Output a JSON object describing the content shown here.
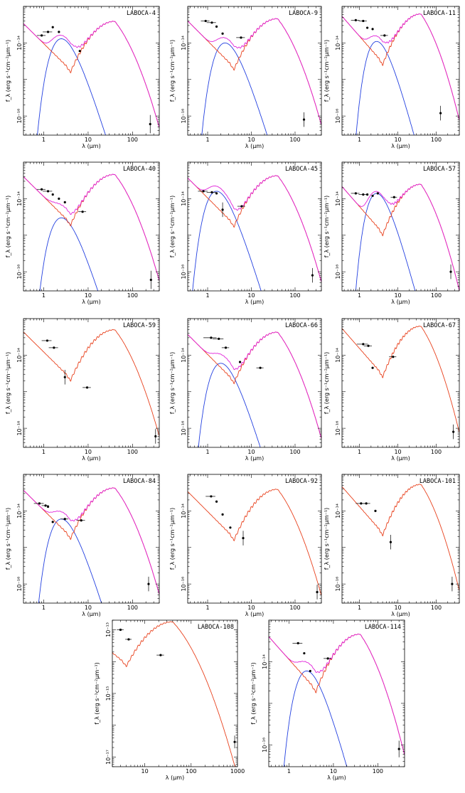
{
  "figure": {
    "colors": {
      "stellar": "#2340e0",
      "starburst": "#e8401c",
      "total": "#e020d8",
      "points": "#000000"
    }
  },
  "chart_data": [
    {
      "type": "line",
      "title": "LABOCA-4",
      "xlabel": "λ (μm)",
      "ylabel": "f_λ (erg s⁻¹cm⁻²μm⁻¹)",
      "xlim": [
        0.35,
        400
      ],
      "xticks": [
        1,
        10,
        100
      ],
      "ylim": [
        3e-17,
        1e-13
      ],
      "yticks_labeled": [
        "10⁻¹⁴",
        "10⁻¹⁶"
      ],
      "components": [
        "stellar",
        "starburst",
        "total"
      ],
      "stellar_peak_um": 2.5,
      "stellar_peak_f": 1.3e-14,
      "sb_scale": 2.2e-14,
      "sb_offset": 0,
      "points": [
        {
          "x": 0.9,
          "y": 1.6e-14,
          "xerr": 0.2
        },
        {
          "x": 1.25,
          "y": 2e-14,
          "xerr": 0.3
        },
        {
          "x": 1.6,
          "y": 2.7e-14
        },
        {
          "x": 2.2,
          "y": 2e-14
        },
        {
          "x": 6.5,
          "y": 6e-15
        },
        {
          "x": 250,
          "y": 6e-17,
          "yerr": 0.25
        }
      ]
    },
    {
      "type": "line",
      "title": "LABOCA-9",
      "xlabel": "λ (μm)",
      "ylabel": "f_λ (erg s⁻¹cm⁻²μm⁻¹)",
      "xlim": [
        0.35,
        400
      ],
      "xticks": [
        1,
        10,
        100
      ],
      "ylim": [
        3e-17,
        1e-13
      ],
      "yticks_labeled": [
        "10⁻¹⁴",
        "10⁻¹⁶"
      ],
      "components": [
        "stellar",
        "starburst",
        "total"
      ],
      "stellar_peak_um": 2.5,
      "stellar_peak_f": 1e-14,
      "sb_scale": 2.6e-14,
      "sb_offset": 0,
      "points": [
        {
          "x": 0.9,
          "y": 4e-14,
          "xerr": 0.2
        },
        {
          "x": 1.25,
          "y": 3.6e-14,
          "xerr": 0.3
        },
        {
          "x": 1.6,
          "y": 2.8e-14
        },
        {
          "x": 2.2,
          "y": 1.8e-14
        },
        {
          "x": 5.8,
          "y": 1.4e-14,
          "xerr": 1.3
        },
        {
          "x": 160,
          "y": 8e-17,
          "yerr": 0.2
        }
      ]
    },
    {
      "type": "line",
      "title": "LABOCA-11",
      "xlabel": "λ (μm)",
      "ylabel": "f_λ (erg s⁻¹cm⁻²μm⁻¹)",
      "xlim": [
        0.35,
        400
      ],
      "xticks": [
        1,
        10,
        100
      ],
      "ylim": [
        3e-17,
        1e-13
      ],
      "yticks_labeled": [
        "10⁻¹⁴",
        "10⁻¹⁶"
      ],
      "components": [
        "stellar",
        "starburst",
        "total"
      ],
      "stellar_peak_um": 2.8,
      "stellar_peak_f": 1.1e-14,
      "sb_scale": 3.5e-14,
      "sb_offset": 0,
      "points": [
        {
          "x": 0.8,
          "y": 4.2e-14,
          "xerr": 0.2
        },
        {
          "x": 1.25,
          "y": 4e-14,
          "xerr": 0.3
        },
        {
          "x": 1.6,
          "y": 2.6e-14
        },
        {
          "x": 2.2,
          "y": 2.4e-14
        },
        {
          "x": 4.5,
          "y": 1.6e-14,
          "xerr": 1.0
        },
        {
          "x": 130,
          "y": 1.2e-16,
          "yerr": 0.2
        }
      ]
    },
    {
      "type": "line",
      "title": "LABOCA-40",
      "xlabel": "λ (μm)",
      "ylabel": "f_λ (erg s⁻¹cm⁻²μm⁻¹)",
      "xlim": [
        0.35,
        400
      ],
      "xticks": [
        1,
        10,
        100
      ],
      "ylim": [
        3e-17,
        1e-13
      ],
      "yticks_labeled": [
        "10⁻¹⁴",
        "10⁻¹⁶"
      ],
      "components": [
        "stellar",
        "starburst",
        "total"
      ],
      "stellar_peak_um": 2.5,
      "stellar_peak_f": 3e-15,
      "sb_scale": 2.6e-14,
      "sb_offset": 0,
      "points": [
        {
          "x": 0.9,
          "y": 1.8e-14,
          "xerr": 0.2
        },
        {
          "x": 1.25,
          "y": 1.6e-14,
          "xerr": 0.3
        },
        {
          "x": 1.6,
          "y": 1.3e-14
        },
        {
          "x": 2.2,
          "y": 1e-14
        },
        {
          "x": 3.0,
          "y": 8e-15
        },
        {
          "x": 7.5,
          "y": 4.4e-15,
          "xerr": 1.5
        },
        {
          "x": 260,
          "y": 6e-17,
          "yerr": 0.25
        }
      ]
    },
    {
      "type": "line",
      "title": "LABOCA-45",
      "xlabel": "λ (μm)",
      "ylabel": "f_λ (erg s⁻¹cm⁻²μm⁻¹)",
      "xlim": [
        0.35,
        400
      ],
      "xticks": [
        1,
        10,
        100
      ],
      "ylim": [
        3e-17,
        1e-13
      ],
      "yticks_labeled": [
        "10⁻¹⁴",
        "10⁻¹⁶"
      ],
      "components": [
        "stellar",
        "starburst",
        "total"
      ],
      "stellar_peak_um": 1.6,
      "stellar_peak_f": 1.6e-14,
      "sb_scale": 2.4e-14,
      "sb_offset": 0,
      "points": [
        {
          "x": 0.8,
          "y": 1.6e-14,
          "xerr": 0.2
        },
        {
          "x": 1.25,
          "y": 1.5e-14,
          "xerr": 0.3
        },
        {
          "x": 1.6,
          "y": 1.4e-14
        },
        {
          "x": 2.2,
          "y": 5e-15,
          "yerr": 0.2
        },
        {
          "x": 6.0,
          "y": 6.2e-15,
          "xerr": 1.2
        },
        {
          "x": 250,
          "y": 8e-17,
          "yerr": 0.2
        }
      ]
    },
    {
      "type": "line",
      "title": "LABOCA-57",
      "xlabel": "λ (μm)",
      "ylabel": "f_λ (erg s⁻¹cm⁻²μm⁻¹)",
      "xlim": [
        0.35,
        400
      ],
      "xticks": [
        1,
        10,
        100
      ],
      "ylim": [
        3e-17,
        1e-13
      ],
      "yticks_labeled": [
        "10⁻¹⁴",
        "10⁻¹⁶"
      ],
      "components": [
        "stellar",
        "starburst",
        "total"
      ],
      "stellar_peak_um": 2.8,
      "stellar_peak_f": 1.4e-14,
      "sb_scale": 1.4e-14,
      "sb_offset": 0,
      "points": [
        {
          "x": 0.8,
          "y": 1.4e-14,
          "xerr": 0.2
        },
        {
          "x": 1.25,
          "y": 1.3e-14,
          "xerr": 0.3
        },
        {
          "x": 1.6,
          "y": 1.3e-14
        },
        {
          "x": 2.2,
          "y": 1.2e-14
        },
        {
          "x": 3.0,
          "y": 1.4e-14
        },
        {
          "x": 8.0,
          "y": 1.1e-14,
          "xerr": 1.5
        },
        {
          "x": 240,
          "y": 1e-16,
          "yerr": 0.2
        }
      ]
    },
    {
      "type": "line",
      "title": "LABOCA-59",
      "xlabel": "λ (μm)",
      "ylabel": "f_λ (erg s⁻¹cm⁻²μm⁻¹)",
      "xlim": [
        0.35,
        400
      ],
      "xticks": [
        1,
        10,
        100
      ],
      "ylim": [
        3e-17,
        1e-13
      ],
      "yticks_labeled": [
        "10⁻¹⁴",
        "10⁻¹⁶"
      ],
      "components": [
        "starburst"
      ],
      "sb_scale": 2.8e-14,
      "sb_offset": 0,
      "points": [
        {
          "x": 1.2,
          "y": 2.5e-14,
          "xerr": 0.3
        },
        {
          "x": 1.7,
          "y": 1.6e-14,
          "xerr": 0.4
        },
        {
          "x": 3.0,
          "y": 2.5e-15,
          "yerr": 0.2
        },
        {
          "x": 9.5,
          "y": 1.3e-15,
          "xerr": 2.0
        },
        {
          "x": 330,
          "y": 6e-17,
          "yerr": 0.2
        }
      ]
    },
    {
      "type": "line",
      "title": "LABOCA-66",
      "xlabel": "λ (μm)",
      "ylabel": "f_λ (erg s⁻¹cm⁻²μm⁻¹)",
      "xlim": [
        0.35,
        400
      ],
      "xticks": [
        1,
        10,
        100
      ],
      "ylim": [
        3e-17,
        1e-13
      ],
      "yticks_labeled": [
        "10⁻¹⁴",
        "10⁻¹⁶"
      ],
      "components": [
        "stellar",
        "starburst",
        "total"
      ],
      "stellar_peak_um": 2.0,
      "stellar_peak_f": 6e-15,
      "sb_scale": 2.4e-14,
      "sb_offset": 0,
      "points": [
        {
          "x": 1.2,
          "y": 3e-14,
          "xerr": 0.4
        },
        {
          "x": 1.8,
          "y": 2.8e-14,
          "xerr": 0.5
        },
        {
          "x": 2.6,
          "y": 1.6e-14,
          "xerr": 0.5
        },
        {
          "x": 5.5,
          "y": 6.5e-15
        },
        {
          "x": 16,
          "y": 4.5e-15,
          "xerr": 3.0
        }
      ]
    },
    {
      "type": "line",
      "title": "LABOCA-67",
      "xlabel": "λ (μm)",
      "ylabel": "f_λ (erg s⁻¹cm⁻²μm⁻¹)",
      "xlim": [
        0.35,
        400
      ],
      "xticks": [
        1,
        10,
        100
      ],
      "ylim": [
        3e-17,
        1e-13
      ],
      "yticks_labeled": [
        "10⁻¹⁴",
        "10⁻¹⁶"
      ],
      "components": [
        "starburst"
      ],
      "sb_scale": 3.5e-14,
      "sb_offset": 0,
      "points": [
        {
          "x": 1.25,
          "y": 2e-14,
          "xerr": 0.4
        },
        {
          "x": 1.7,
          "y": 1.8e-14,
          "xerr": 0.4
        },
        {
          "x": 2.2,
          "y": 4.5e-15
        },
        {
          "x": 7.5,
          "y": 9e-15,
          "xerr": 1.6
        },
        {
          "x": 280,
          "y": 8e-17,
          "yerr": 0.2
        }
      ]
    },
    {
      "type": "line",
      "title": "LABOCA-84",
      "xlabel": "λ (μm)",
      "ylabel": "f_λ (erg s⁻¹cm⁻²μm⁻¹)",
      "xlim": [
        0.35,
        400
      ],
      "xticks": [
        1,
        10,
        100
      ],
      "ylim": [
        3e-17,
        1e-13
      ],
      "yticks_labeled": [
        "10⁻¹⁴",
        "10⁻¹⁶"
      ],
      "components": [
        "stellar",
        "starburst",
        "total"
      ],
      "stellar_peak_um": 2.5,
      "stellar_peak_f": 6e-15,
      "sb_scale": 2.4e-14,
      "sb_offset": 0,
      "points": [
        {
          "x": 0.8,
          "y": 1.6e-14,
          "xerr": 0.2
        },
        {
          "x": 1.1,
          "y": 1.4e-14,
          "xerr": 0.2
        },
        {
          "x": 1.25,
          "y": 1.3e-14
        },
        {
          "x": 1.6,
          "y": 5e-15
        },
        {
          "x": 3.0,
          "y": 6e-15,
          "xerr": 0.6
        },
        {
          "x": 7.0,
          "y": 5.5e-15,
          "xerr": 1.5
        },
        {
          "x": 230,
          "y": 1e-16,
          "yerr": 0.2
        }
      ]
    },
    {
      "type": "line",
      "title": "LABOCA-92",
      "xlabel": "λ (μm)",
      "ylabel": "f_λ (erg s⁻¹cm⁻²μm⁻¹)",
      "xlim": [
        0.35,
        400
      ],
      "xticks": [
        1,
        10,
        100
      ],
      "ylim": [
        3e-17,
        1e-13
      ],
      "yticks_labeled": [
        "10⁻¹⁴",
        "10⁻¹⁶"
      ],
      "components": [
        "starburst"
      ],
      "sb_scale": 2.2e-14,
      "sb_offset": 0,
      "points": [
        {
          "x": 1.2,
          "y": 2.5e-14,
          "xerr": 0.3
        },
        {
          "x": 1.6,
          "y": 1.8e-14
        },
        {
          "x": 2.2,
          "y": 8e-15
        },
        {
          "x": 3.3,
          "y": 3.5e-15
        },
        {
          "x": 6.5,
          "y": 1.8e-15,
          "yerr": 0.2
        },
        {
          "x": 320,
          "y": 6e-17,
          "yerr": 0.2
        }
      ]
    },
    {
      "type": "line",
      "title": "LABOCA-101",
      "xlabel": "λ (μm)",
      "ylabel": "f_λ (erg s⁻¹cm⁻²μm⁻¹)",
      "xlim": [
        0.35,
        400
      ],
      "xticks": [
        1,
        10,
        100
      ],
      "ylim": [
        3e-17,
        1e-13
      ],
      "yticks_labeled": [
        "10⁻¹⁴",
        "10⁻¹⁶"
      ],
      "components": [
        "starburst"
      ],
      "sb_scale": 3e-14,
      "sb_offset": 0,
      "points": [
        {
          "x": 1.1,
          "y": 1.6e-14,
          "xerr": 0.3
        },
        {
          "x": 1.5,
          "y": 1.6e-14,
          "xerr": 0.4
        },
        {
          "x": 2.6,
          "y": 1e-14
        },
        {
          "x": 6.5,
          "y": 1.4e-15,
          "yerr": 0.2
        },
        {
          "x": 260,
          "y": 1e-16,
          "yerr": 0.2
        }
      ]
    },
    {
      "type": "line",
      "title": "LABOCA-108",
      "xlabel": "λ (μm)",
      "ylabel": "f_λ (erg s⁻¹cm⁻²μm⁻¹)",
      "xlim": [
        2,
        1000
      ],
      "xticks": [
        10,
        100,
        1000
      ],
      "ylim": [
        5e-18,
        2e-13
      ],
      "yticks_labeled": [
        "10⁻¹³",
        "10⁻¹⁵",
        "10⁻¹⁷"
      ],
      "components": [
        "starburst"
      ],
      "sb_scale": 1e-13,
      "sb_offset": 0,
      "points": [
        {
          "x": 3.0,
          "y": 1e-13,
          "xerr": 0.5
        },
        {
          "x": 4.5,
          "y": 5e-14,
          "xerr": 0.7
        },
        {
          "x": 22,
          "y": 1.6e-14,
          "xerr": 4.0
        },
        {
          "x": 870,
          "y": 3e-17,
          "yerr": 0.2
        }
      ]
    },
    {
      "type": "line",
      "title": "LABOCA-114",
      "xlabel": "λ (μm)",
      "ylabel": "f_λ (erg s⁻¹cm⁻²μm⁻¹)",
      "xlim": [
        0.35,
        400
      ],
      "xticks": [
        1,
        10,
        100
      ],
      "ylim": [
        3e-17,
        1e-13
      ],
      "yticks_labeled": [
        "10⁻¹⁴",
        "10⁻¹⁶"
      ],
      "components": [
        "stellar",
        "starburst",
        "total"
      ],
      "stellar_peak_um": 2.5,
      "stellar_peak_f": 6e-15,
      "sb_scale": 2.6e-14,
      "sb_offset": 0,
      "points": [
        {
          "x": 1.6,
          "y": 2.8e-14,
          "xerr": 0.4
        },
        {
          "x": 2.2,
          "y": 1.6e-14
        },
        {
          "x": 3.0,
          "y": 6e-15
        },
        {
          "x": 7.5,
          "y": 1.2e-14,
          "xerr": 1.5
        },
        {
          "x": 300,
          "y": 8e-17,
          "yerr": 0.2
        }
      ]
    }
  ]
}
